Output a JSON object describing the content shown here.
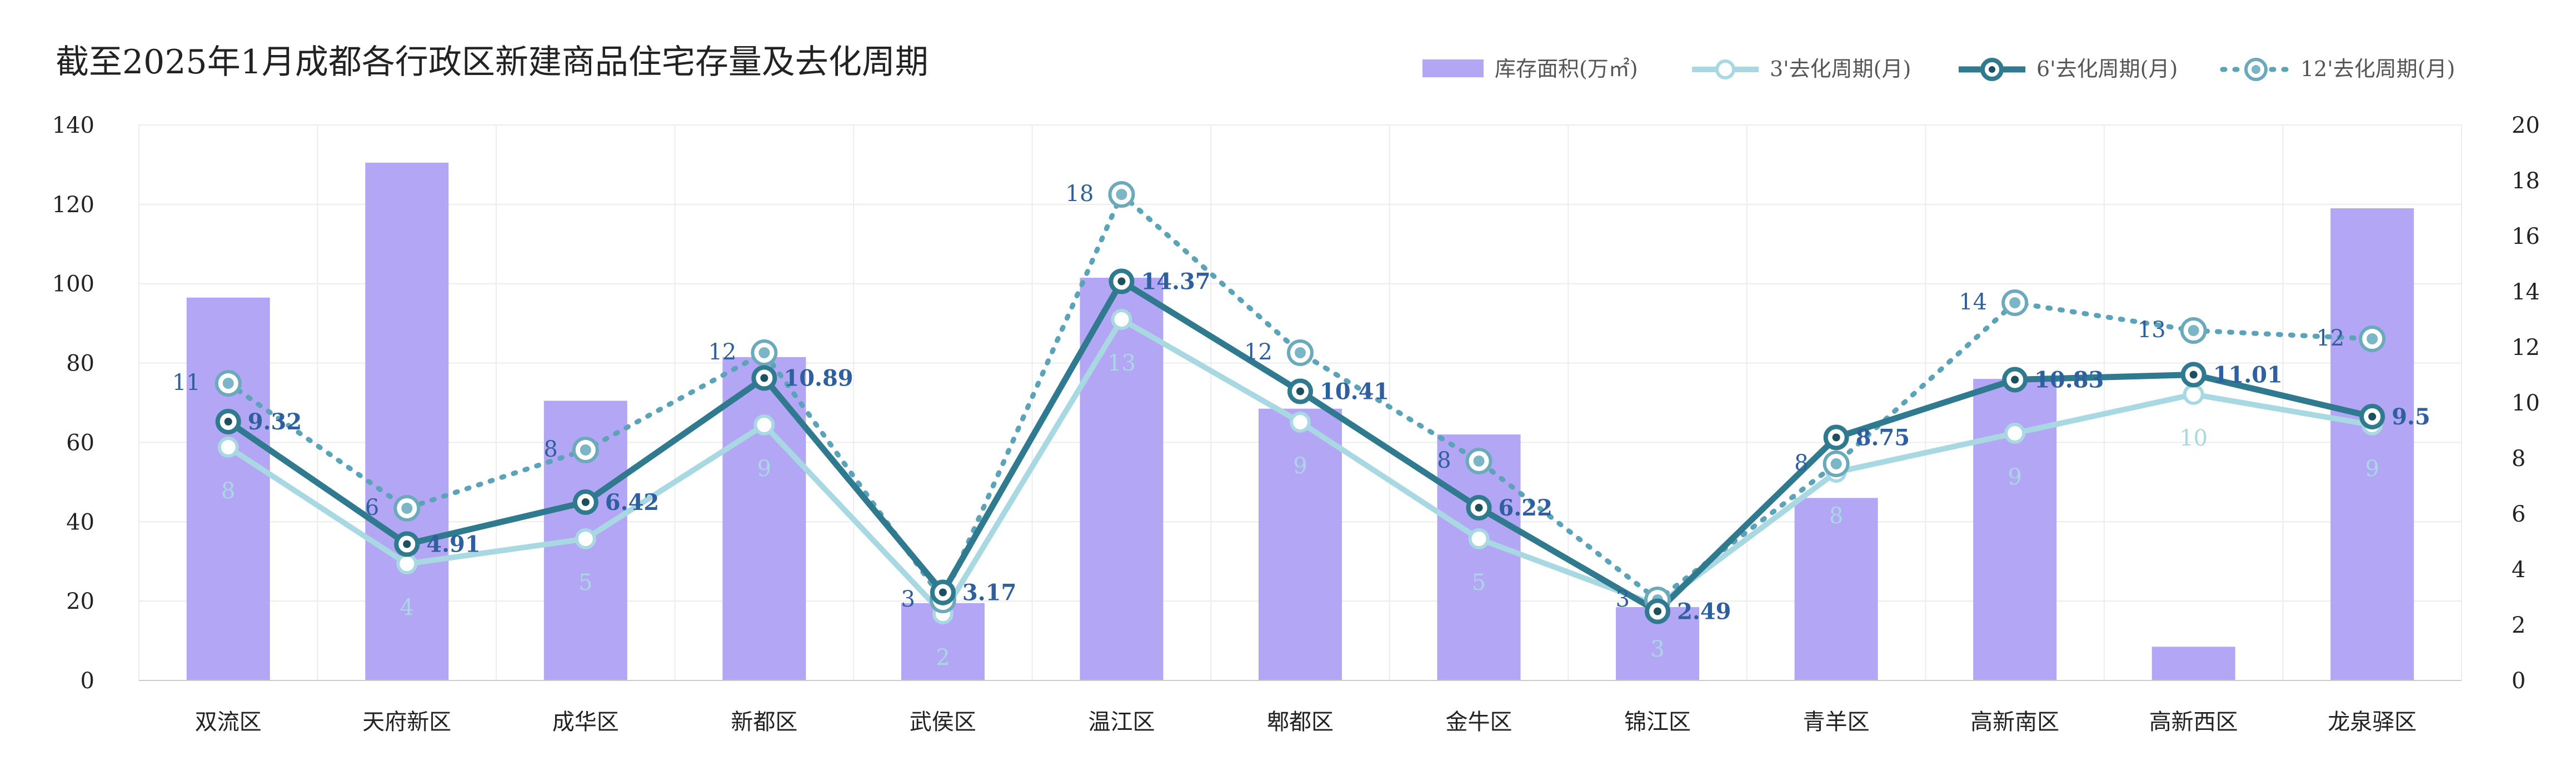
{
  "chart_data": {
    "type": "bar",
    "title": "截至2025年1月成都各行政区新建商品住宅存量及去化周期",
    "categories": [
      "双流区",
      "天府新区",
      "成华区",
      "新都区",
      "武侯区",
      "温江区",
      "郫都区",
      "金牛区",
      "锦江区",
      "青羊区",
      "高新南区",
      "高新西区",
      "龙泉驿区"
    ],
    "left_axis": {
      "min": 0,
      "max": 140,
      "ticks": [
        "0",
        "20",
        "40",
        "60",
        "80",
        "100",
        "120",
        "140"
      ]
    },
    "right_axis": {
      "min": 0,
      "max": 20,
      "ticks": [
        "0",
        "2",
        "4",
        "6",
        "8",
        "10",
        "12",
        "14",
        "16",
        "18",
        "20"
      ]
    },
    "grid": true,
    "legend_position": "top-right",
    "colors": {
      "bar": "#b3a6f4",
      "s3": "#a8d8e2",
      "s6": "#2f7a8e",
      "s12": "#5aa3b8",
      "label6": "#2e5f9e",
      "label12": "#2e5f9e",
      "label3": "#a8d8e2"
    },
    "series": [
      {
        "name": "库存面积(万㎡)",
        "axis": "left",
        "kind": "bar",
        "values": [
          96.5,
          130.5,
          70.5,
          81.5,
          19.5,
          101.5,
          68.5,
          62,
          18.5,
          46,
          76,
          8.5,
          119
        ]
      },
      {
        "name": "3'去化周期(月)",
        "axis": "right",
        "kind": "line",
        "values": [
          8.4,
          4.2,
          5.1,
          9.2,
          2.4,
          13,
          9.3,
          5.1,
          2.7,
          7.5,
          8.9,
          10.3,
          9.2
        ],
        "labels": [
          "8",
          "4",
          "5",
          "9",
          "2",
          "13",
          "9",
          "5",
          "3",
          "8",
          "9",
          "10",
          "9"
        ]
      },
      {
        "name": "6'去化周期(月)",
        "axis": "right",
        "kind": "line",
        "values": [
          9.32,
          4.91,
          6.42,
          10.89,
          3.17,
          14.37,
          10.41,
          6.22,
          2.49,
          8.75,
          10.83,
          11.01,
          9.5
        ],
        "labels": [
          "9.32",
          "4.91",
          "6.42",
          "10.89",
          "3.17",
          "14.37",
          "10.41",
          "6.22",
          "2.49",
          "8.75",
          "10.83",
          "11.01",
          "9.5"
        ]
      },
      {
        "name": "12'去化周期(月)",
        "axis": "right",
        "kind": "line",
        "values": [
          10.7,
          6.2,
          8.3,
          11.8,
          2.9,
          17.5,
          11.8,
          7.9,
          2.9,
          7.8,
          13.6,
          12.6,
          12.3
        ],
        "labels": [
          "11",
          "6",
          "8",
          "12",
          "3",
          "18",
          "12",
          "8",
          "3",
          "8",
          "14",
          "13",
          "12"
        ]
      }
    ]
  }
}
